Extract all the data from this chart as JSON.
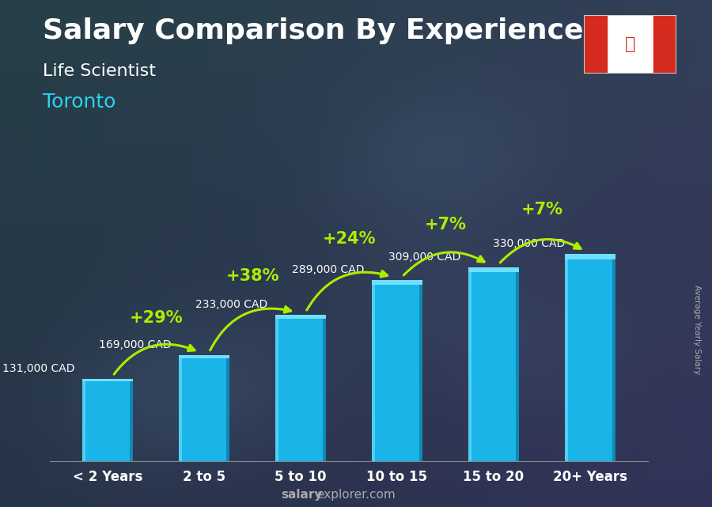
{
  "title": "Salary Comparison By Experience",
  "subtitle": "Life Scientist",
  "city": "Toronto",
  "categories": [
    "< 2 Years",
    "2 to 5",
    "5 to 10",
    "10 to 15",
    "15 to 20",
    "20+ Years"
  ],
  "values": [
    131000,
    169000,
    233000,
    289000,
    309000,
    330000
  ],
  "value_labels": [
    "131,000 CAD",
    "169,000 CAD",
    "233,000 CAD",
    "289,000 CAD",
    "309,000 CAD",
    "330,000 CAD"
  ],
  "pct_changes": [
    "+29%",
    "+38%",
    "+24%",
    "+7%",
    "+7%"
  ],
  "bar_color_main": "#1ab4e8",
  "bar_color_light": "#4dd0f5",
  "bar_color_dark": "#0d8ab5",
  "bar_color_top": "#6de0ff",
  "bg_color": "#2a3a4a",
  "title_color": "#ffffff",
  "subtitle_color": "#ffffff",
  "city_color": "#29d4f0",
  "value_label_color": "#ffffff",
  "pct_color": "#aaee00",
  "arrow_color": "#aaee00",
  "watermark_color": "#aaaaaa",
  "watermark_bold": "salary",
  "watermark_rest": "explorer.com",
  "ylabel": "Average Yearly Salary",
  "title_fontsize": 26,
  "subtitle_fontsize": 16,
  "city_fontsize": 18,
  "value_fontsize": 10,
  "pct_fontsize": 15,
  "xtick_fontsize": 12,
  "ylim_max": 420000,
  "bar_width": 0.52,
  "flag_red": "#d52b1e",
  "flag_white": "#ffffff"
}
